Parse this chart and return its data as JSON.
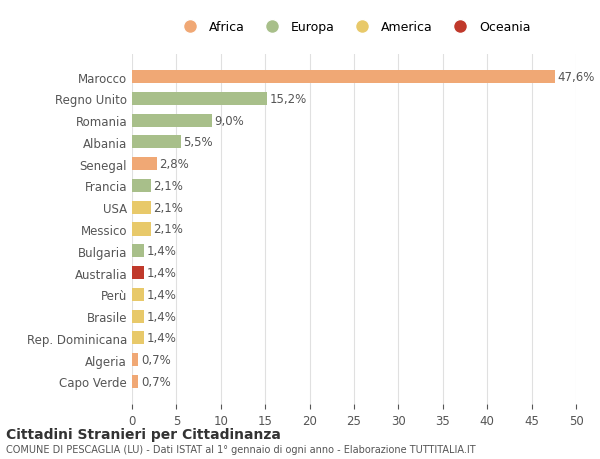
{
  "countries": [
    "Marocco",
    "Regno Unito",
    "Romania",
    "Albania",
    "Senegal",
    "Francia",
    "USA",
    "Messico",
    "Bulgaria",
    "Australia",
    "Perù",
    "Brasile",
    "Rep. Dominicana",
    "Algeria",
    "Capo Verde"
  ],
  "values": [
    47.6,
    15.2,
    9.0,
    5.5,
    2.8,
    2.1,
    2.1,
    2.1,
    1.4,
    1.4,
    1.4,
    1.4,
    1.4,
    0.7,
    0.7
  ],
  "labels": [
    "47,6%",
    "15,2%",
    "9,0%",
    "5,5%",
    "2,8%",
    "2,1%",
    "2,1%",
    "2,1%",
    "1,4%",
    "1,4%",
    "1,4%",
    "1,4%",
    "1,4%",
    "0,7%",
    "0,7%"
  ],
  "colors": [
    "#f0a875",
    "#a8bf8a",
    "#a8bf8a",
    "#a8bf8a",
    "#f0a875",
    "#a8bf8a",
    "#e8c96a",
    "#e8c96a",
    "#a8bf8a",
    "#c0392b",
    "#e8c96a",
    "#e8c96a",
    "#e8c96a",
    "#f0a875",
    "#f0a875"
  ],
  "legend_labels": [
    "Africa",
    "Europa",
    "America",
    "Oceania"
  ],
  "legend_colors": [
    "#f0a875",
    "#a8bf8a",
    "#e8c96a",
    "#c0392b"
  ],
  "title": "Cittadini Stranieri per Cittadinanza",
  "subtitle": "COMUNE DI PESCAGLIA (LU) - Dati ISTAT al 1° gennaio di ogni anno - Elaborazione TUTTITALIA.IT",
  "xlim": [
    0,
    50
  ],
  "xticks": [
    0,
    5,
    10,
    15,
    20,
    25,
    30,
    35,
    40,
    45,
    50
  ],
  "background_color": "#ffffff",
  "grid_color": "#e0e0e0",
  "label_fontsize": 8.5,
  "bar_height": 0.6
}
